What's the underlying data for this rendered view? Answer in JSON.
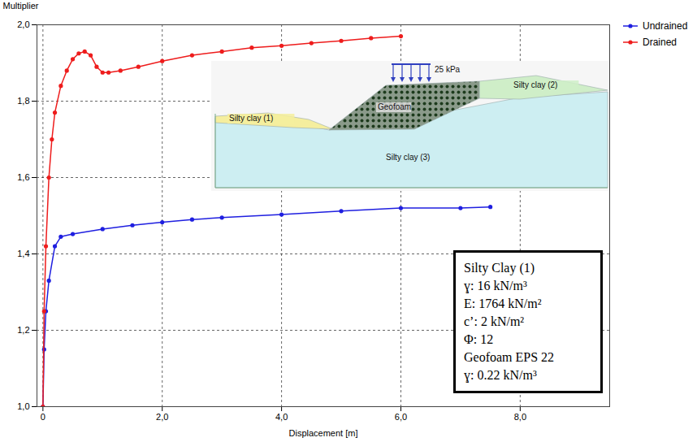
{
  "chart_data": {
    "type": "line",
    "x_label": "Displacement [m]",
    "y_label": "Multiplier",
    "xlim": [
      -0.1,
      9.5
    ],
    "ylim": [
      1.0,
      2.0
    ],
    "xticks": [
      0,
      {
        "value": 2,
        "label": "2,0"
      },
      {
        "value": 4,
        "label": "4,0"
      },
      {
        "value": 6,
        "label": "6,0"
      },
      {
        "value": 8,
        "label": "8,0"
      }
    ],
    "yticks": [
      {
        "value": 1.0,
        "label": "1,0"
      },
      {
        "value": 1.2,
        "label": "1,2"
      },
      {
        "value": 1.4,
        "label": "1,4"
      },
      {
        "value": 1.6,
        "label": "1,6"
      },
      {
        "value": 1.8,
        "label": "1,8"
      },
      {
        "value": 2.0,
        "label": "2,0"
      }
    ],
    "grid": true,
    "legend": "right",
    "marker": "circle",
    "series": [
      {
        "name": "Undrained",
        "color": "#1f1fe0",
        "x": [
          0,
          0.02,
          0.05,
          0.1,
          0.2,
          0.3,
          0.5,
          1.0,
          1.5,
          2.0,
          2.5,
          3.0,
          4.0,
          5.0,
          6.0,
          7.0,
          7.5
        ],
        "values": [
          1.0,
          1.15,
          1.25,
          1.33,
          1.42,
          1.445,
          1.452,
          1.465,
          1.475,
          1.483,
          1.49,
          1.495,
          1.503,
          1.512,
          1.52,
          1.52,
          1.523
        ]
      },
      {
        "name": "Drained",
        "color": "#ee1c1c",
        "x": [
          0,
          0.02,
          0.05,
          0.1,
          0.15,
          0.2,
          0.3,
          0.4,
          0.5,
          0.6,
          0.7,
          0.8,
          0.9,
          1.0,
          1.1,
          1.3,
          1.6,
          2.0,
          2.5,
          3.0,
          3.5,
          4.0,
          4.5,
          5.0,
          5.5,
          6.0
        ],
        "values": [
          1.0,
          1.25,
          1.42,
          1.6,
          1.7,
          1.77,
          1.84,
          1.88,
          1.91,
          1.925,
          1.93,
          1.92,
          1.89,
          1.875,
          1.875,
          1.88,
          1.89,
          1.905,
          1.92,
          1.93,
          1.94,
          1.945,
          1.952,
          1.958,
          1.965,
          1.97
        ]
      }
    ],
    "inset": {
      "load": "25 kPa",
      "labels": [
        "Silty clay (1)",
        "Geofoam",
        "Silty clay (2)",
        "Silty clay (3)"
      ]
    },
    "properties": [
      "Silty Clay (1)",
      "ɣ: 16 kN/m³",
      "E: 1764 kN/m²",
      "c’: 2 kN/m²",
      "Φ: 12",
      "Geofoam EPS 22",
      "ɣ: 0.22 kN/m³"
    ]
  }
}
